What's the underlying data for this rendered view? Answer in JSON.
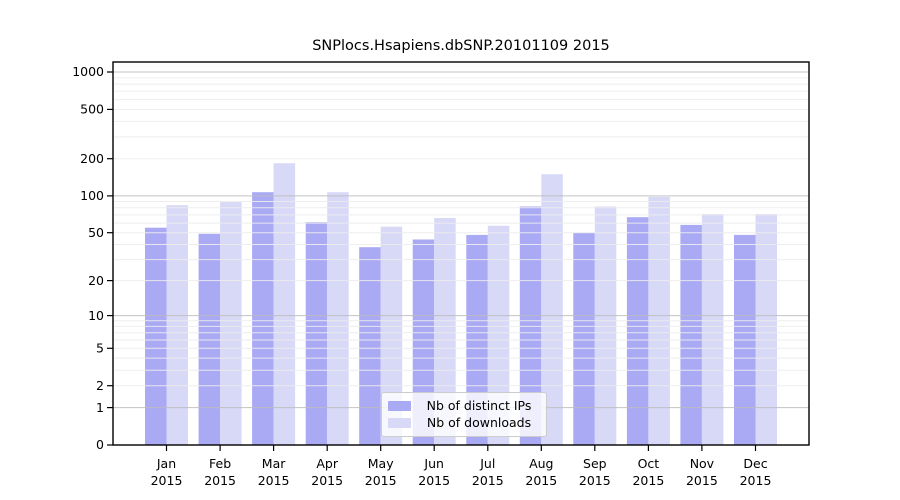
{
  "chart_data": {
    "type": "bar",
    "title": "SNPlocs.Hsapiens.dbSNP.20101109 2015",
    "categories": [
      "Jan",
      "Feb",
      "Mar",
      "Apr",
      "May",
      "Jun",
      "Jul",
      "Aug",
      "Sep",
      "Oct",
      "Nov",
      "Dec"
    ],
    "category_year": "2015",
    "series": [
      {
        "name": "Nb of distinct IPs",
        "color": "#a9a9f4",
        "values": [
          55,
          49,
          107,
          61,
          38,
          44,
          48,
          82,
          50,
          67,
          58,
          48
        ]
      },
      {
        "name": "Nb of downloads",
        "color": "#d8d8f7",
        "values": [
          84,
          89,
          184,
          107,
          56,
          66,
          57,
          150,
          82,
          98,
          71,
          71
        ]
      }
    ],
    "xlabel": "",
    "ylabel": "",
    "y_axis": {
      "scale": "log1p",
      "tick_values": [
        1000,
        500,
        200,
        100,
        50,
        20,
        10,
        5,
        2,
        1,
        0
      ],
      "tick_labels": [
        "1000",
        "500",
        "200",
        "100",
        "50",
        "20",
        "10",
        "5",
        "2",
        "1",
        "0"
      ],
      "ylim": [
        0,
        1200
      ]
    },
    "grid": true,
    "legend": {
      "position": "lower center",
      "entries": [
        "Nb of distinct IPs",
        "Nb of downloads"
      ]
    },
    "colors": {
      "major_gridline": "#bdbdbd",
      "minor_gridline": "#ececec",
      "spine": "#000000",
      "bar_distinct_ips": "#a9a9f4",
      "bar_downloads": "#d8d8f7"
    }
  }
}
